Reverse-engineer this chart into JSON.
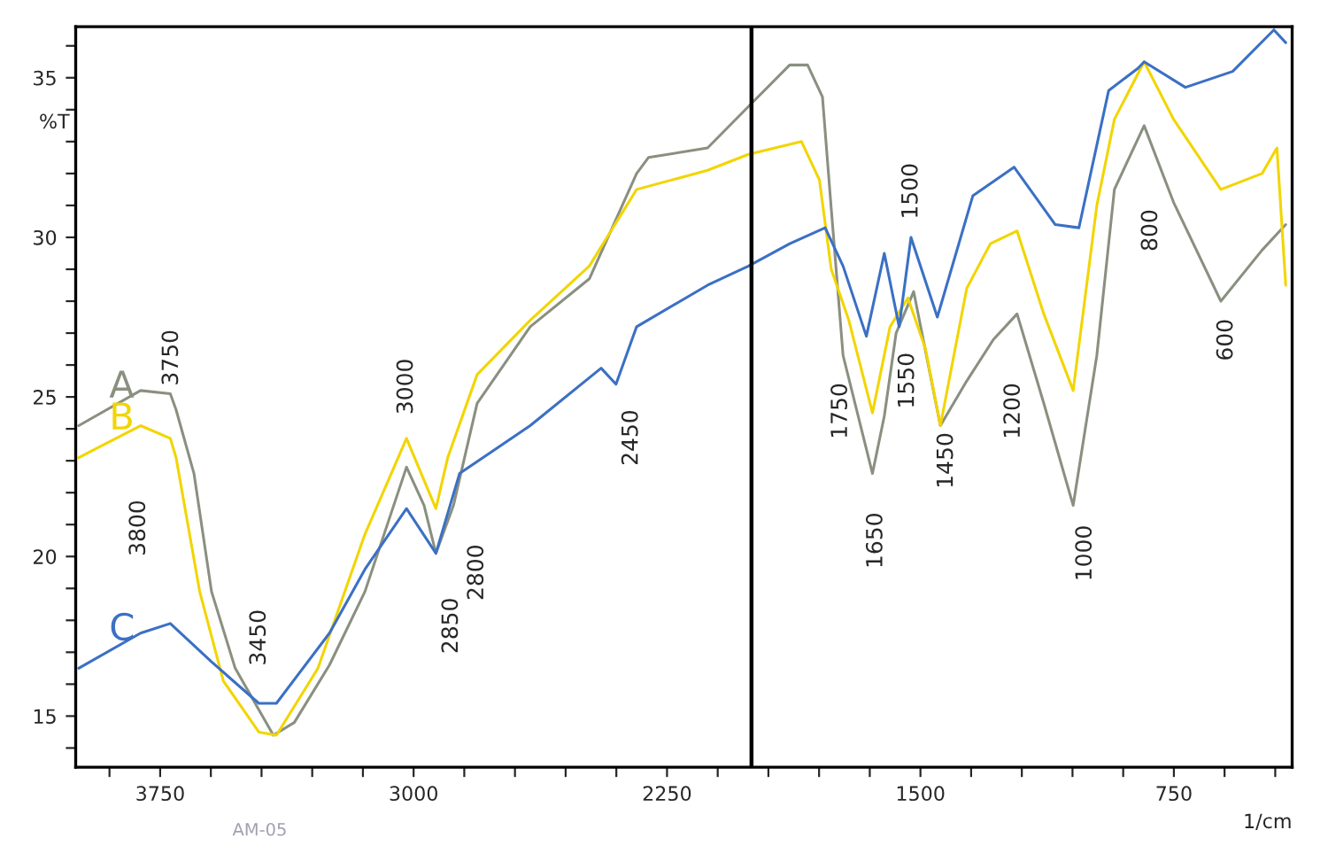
{
  "chart_data": {
    "type": "line",
    "ylabel": "%T",
    "xlabel": "1/cm",
    "xlim": [
      4000,
      400
    ],
    "ylim": [
      13.4,
      36.6
    ],
    "xticks": [
      {
        "value": 3900,
        "label": null
      },
      3750,
      {
        "value": 3600,
        "label": null
      },
      {
        "value": 3450,
        "label": null
      },
      {
        "value": 3300,
        "label": null
      },
      {
        "value": 3150,
        "label": null
      },
      3000,
      {
        "value": 2850,
        "label": null
      },
      {
        "value": 2700,
        "label": null
      },
      {
        "value": 2550,
        "label": null
      },
      {
        "value": 2400,
        "label": null
      },
      2250,
      {
        "value": 2100,
        "label": null
      },
      {
        "value": 1950,
        "label": null
      },
      {
        "value": 1800,
        "label": null
      },
      {
        "value": 1650,
        "label": null
      },
      1500,
      {
        "value": 1350,
        "label": null
      },
      {
        "value": 1200,
        "label": null
      },
      {
        "value": 1050,
        "label": null
      },
      {
        "value": 900,
        "label": null
      },
      750,
      {
        "value": 600,
        "label": null
      },
      {
        "value": 450,
        "label": null
      }
    ],
    "yticks": [
      {
        "value": 14,
        "label": null
      },
      15,
      {
        "value": 16,
        "label": null
      },
      {
        "value": 17,
        "label": null
      },
      {
        "value": 18,
        "label": null
      },
      {
        "value": 19,
        "label": null
      },
      20,
      {
        "value": 21,
        "label": null
      },
      {
        "value": 22,
        "label": null
      },
      {
        "value": 23,
        "label": null
      },
      {
        "value": 24,
        "label": null
      },
      25,
      {
        "value": 26,
        "label": null
      },
      {
        "value": 27,
        "label": null
      },
      {
        "value": 28,
        "label": null
      },
      {
        "value": 29,
        "label": null
      },
      30,
      {
        "value": 31,
        "label": null
      },
      {
        "value": 32,
        "label": null
      },
      {
        "value": 33,
        "label": null
      },
      {
        "value": 34,
        "label": null
      },
      35,
      {
        "value": 36,
        "label": null
      }
    ],
    "grid": false,
    "legend": false,
    "marker": "none",
    "line_style": "solid",
    "ref_lines": [
      {
        "axis": "x",
        "value": 2000,
        "color": "#000000"
      }
    ],
    "series": [
      {
        "name": "A",
        "color": "#8a9080",
        "x": [
          3991,
          3808,
          3720,
          3703,
          3650,
          3598,
          3528,
          3458,
          3415,
          3353,
          3249,
          3144,
          3021,
          2969,
          2934,
          2882,
          2812,
          2655,
          2480,
          2340,
          2305,
          2130,
          2009,
          1887,
          1834,
          1790,
          1764,
          1729,
          1642,
          1607,
          1572,
          1520,
          1441,
          1363,
          1284,
          1214,
          1135,
          1048,
          978,
          926,
          838,
          751,
          611,
          489,
          419
        ],
        "values": [
          24.1,
          25.2,
          25.1,
          24.6,
          22.6,
          18.9,
          16.5,
          15.2,
          14.4,
          14.8,
          16.6,
          18.9,
          22.8,
          21.6,
          20.1,
          21.6,
          24.8,
          27.2,
          28.7,
          32.0,
          32.5,
          32.8,
          34.1,
          35.4,
          35.4,
          34.4,
          30.9,
          26.3,
          22.6,
          24.4,
          27.0,
          28.3,
          24.1,
          25.5,
          26.8,
          27.6,
          24.8,
          21.6,
          26.3,
          31.5,
          33.5,
          31.1,
          28.0,
          29.6,
          30.4
        ]
      },
      {
        "name": "B",
        "color": "#f2d500",
        "x": [
          3991,
          3808,
          3720,
          3703,
          3633,
          3563,
          3458,
          3406,
          3283,
          3144,
          3021,
          2934,
          2899,
          2812,
          2655,
          2480,
          2340,
          2130,
          2009,
          1852,
          1799,
          1764,
          1712,
          1642,
          1590,
          1537,
          1485,
          1441,
          1363,
          1293,
          1214,
          1135,
          1048,
          978,
          926,
          838,
          751,
          611,
          489,
          445,
          419
        ],
        "values": [
          23.1,
          24.1,
          23.7,
          23.1,
          18.9,
          16.1,
          14.5,
          14.4,
          16.5,
          20.7,
          23.7,
          21.5,
          23.1,
          25.7,
          27.4,
          29.1,
          31.5,
          32.1,
          32.6,
          33.0,
          31.8,
          29.0,
          27.4,
          24.5,
          27.2,
          28.1,
          26.5,
          24.1,
          28.4,
          29.8,
          30.2,
          27.6,
          25.2,
          31.0,
          33.7,
          35.5,
          33.7,
          31.5,
          32.0,
          32.8,
          28.5
        ]
      },
      {
        "name": "C",
        "color": "#3b70c4",
        "x": [
          3991,
          3808,
          3720,
          3598,
          3458,
          3406,
          3249,
          3144,
          3021,
          2934,
          2864,
          2655,
          2445,
          2401,
          2340,
          2130,
          2009,
          1887,
          1782,
          1729,
          1660,
          1607,
          1563,
          1528,
          1450,
          1345,
          1223,
          1101,
          1031,
          943,
          856,
          838,
          716,
          576,
          454,
          419
        ],
        "values": [
          16.5,
          17.6,
          17.9,
          16.7,
          15.4,
          15.4,
          17.6,
          19.6,
          21.5,
          20.1,
          22.6,
          24.1,
          25.9,
          25.4,
          27.2,
          28.5,
          29.1,
          29.8,
          30.3,
          29.1,
          26.9,
          29.5,
          27.2,
          30.0,
          27.5,
          31.3,
          32.2,
          30.4,
          30.3,
          34.6,
          35.3,
          35.5,
          34.7,
          35.2,
          36.5,
          36.1
        ]
      }
    ],
    "annotations": [
      "3750",
      "3800",
      "3450",
      "3000",
      "2850",
      "2800",
      "2450",
      "1750",
      "1650",
      "1550",
      "1500",
      "1450",
      "1200",
      "1000",
      "800",
      "600",
      "AM-05"
    ]
  }
}
